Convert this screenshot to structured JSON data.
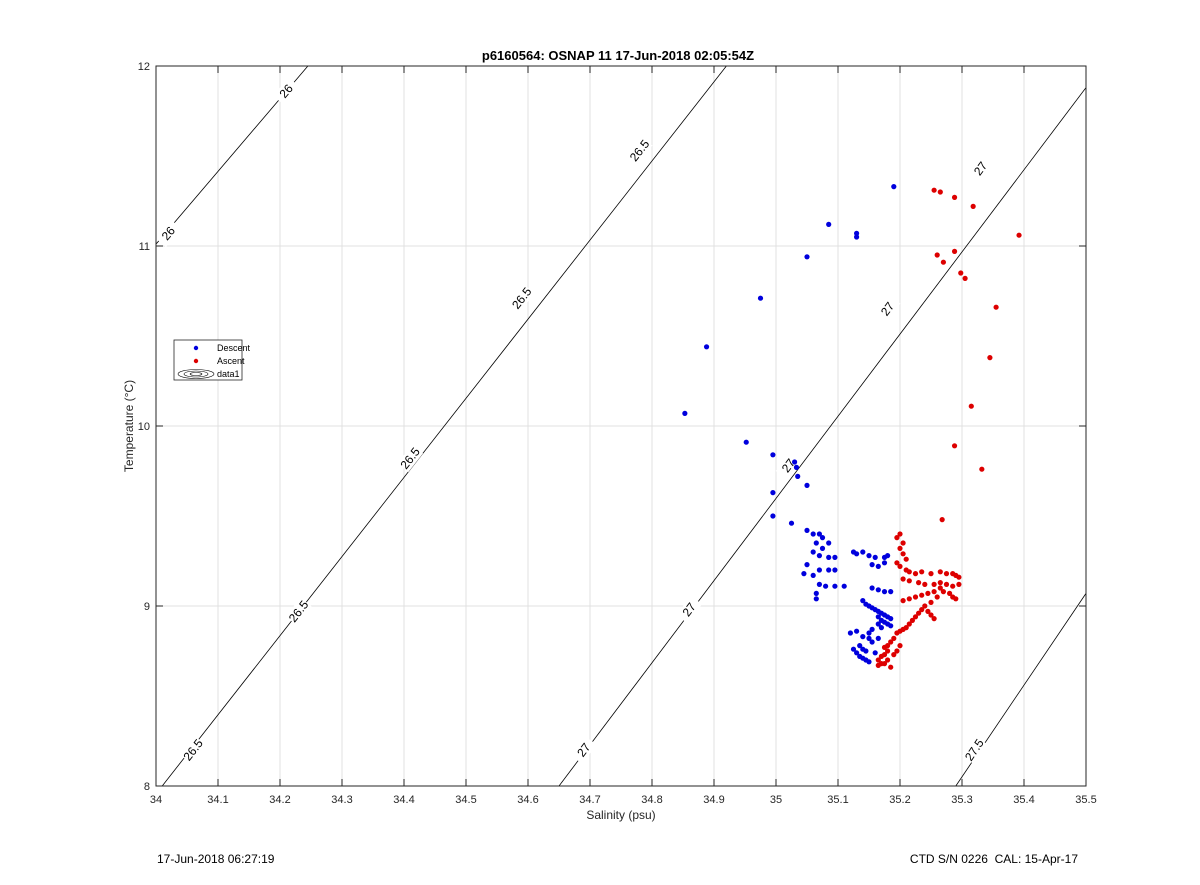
{
  "chart_data": {
    "type": "scatter",
    "title": "p6160564: OSNAP 11 17-Jun-2018 02:05:54Z",
    "xlabel": "Salinity (psu)",
    "ylabel": "Temperature (°C)",
    "xlim": [
      34,
      35.5
    ],
    "ylim": [
      8,
      12
    ],
    "xticks": [
      "34",
      "34.1",
      "34.2",
      "34.3",
      "34.4",
      "34.5",
      "34.6",
      "34.7",
      "34.8",
      "34.9",
      "35",
      "35.1",
      "35.2",
      "35.3",
      "35.4",
      "35.5"
    ],
    "yticks": [
      "8",
      "9",
      "10",
      "11",
      "12"
    ],
    "grid": true,
    "legend_position": "left",
    "legend": [
      "Descent",
      "Ascent",
      "data1"
    ],
    "colors": {
      "descent": "#0000dd",
      "ascent": "#dd0000",
      "contour": "#000000",
      "grid": "#e0e0e0"
    },
    "contours": [
      {
        "level": "26",
        "line": [
          [
            33.99,
            10.97
          ],
          [
            34.245,
            12.0
          ]
        ],
        "labels": [
          [
            34.02,
            11.07
          ],
          [
            34.21,
            11.86
          ]
        ]
      },
      {
        "level": "26.5",
        "line": [
          [
            34.01,
            8.0
          ],
          [
            34.92,
            12.0
          ]
        ],
        "labels": [
          [
            34.06,
            8.2
          ],
          [
            34.23,
            8.97
          ],
          [
            34.41,
            9.82
          ],
          [
            34.59,
            10.71
          ],
          [
            34.78,
            11.53
          ]
        ]
      },
      {
        "level": "27",
        "line": [
          [
            34.65,
            8.0
          ],
          [
            35.5,
            11.88
          ]
        ],
        "labels": [
          [
            34.69,
            8.2
          ],
          [
            34.86,
            8.98
          ],
          [
            35.02,
            9.78
          ],
          [
            35.18,
            10.65
          ],
          [
            35.33,
            11.43
          ]
        ]
      },
      {
        "level": "27.5",
        "line": [
          [
            35.29,
            8.0
          ],
          [
            35.5,
            9.07
          ]
        ],
        "labels": [
          [
            35.32,
            8.2
          ]
        ]
      }
    ],
    "series": [
      {
        "name": "Descent",
        "points": [
          [
            35.19,
            11.33
          ],
          [
            35.085,
            11.12
          ],
          [
            35.13,
            11.07
          ],
          [
            35.13,
            11.05
          ],
          [
            35.05,
            10.94
          ],
          [
            34.975,
            10.71
          ],
          [
            34.888,
            10.44
          ],
          [
            34.853,
            10.07
          ],
          [
            34.952,
            9.91
          ],
          [
            34.995,
            9.84
          ],
          [
            35.03,
            9.8
          ],
          [
            35.033,
            9.77
          ],
          [
            35.035,
            9.72
          ],
          [
            35.05,
            9.67
          ],
          [
            34.995,
            9.63
          ],
          [
            34.995,
            9.5
          ],
          [
            35.025,
            9.46
          ],
          [
            35.05,
            9.42
          ],
          [
            35.06,
            9.4
          ],
          [
            35.07,
            9.4
          ],
          [
            35.075,
            9.38
          ],
          [
            35.085,
            9.35
          ],
          [
            35.065,
            9.35
          ],
          [
            35.075,
            9.32
          ],
          [
            35.06,
            9.3
          ],
          [
            35.07,
            9.28
          ],
          [
            35.085,
            9.27
          ],
          [
            35.095,
            9.27
          ],
          [
            35.125,
            9.3
          ],
          [
            35.13,
            9.29
          ],
          [
            35.14,
            9.3
          ],
          [
            35.15,
            9.28
          ],
          [
            35.16,
            9.27
          ],
          [
            35.175,
            9.27
          ],
          [
            35.18,
            9.28
          ],
          [
            35.05,
            9.23
          ],
          [
            35.045,
            9.18
          ],
          [
            35.06,
            9.17
          ],
          [
            35.07,
            9.2
          ],
          [
            35.085,
            9.2
          ],
          [
            35.095,
            9.2
          ],
          [
            35.155,
            9.23
          ],
          [
            35.165,
            9.22
          ],
          [
            35.175,
            9.24
          ],
          [
            35.07,
            9.12
          ],
          [
            35.08,
            9.11
          ],
          [
            35.095,
            9.11
          ],
          [
            35.11,
            9.11
          ],
          [
            35.065,
            9.07
          ],
          [
            35.065,
            9.04
          ],
          [
            35.155,
            9.1
          ],
          [
            35.165,
            9.09
          ],
          [
            35.175,
            9.08
          ],
          [
            35.185,
            9.08
          ],
          [
            35.14,
            9.03
          ],
          [
            35.145,
            9.01
          ],
          [
            35.15,
            9.0
          ],
          [
            35.155,
            8.99
          ],
          [
            35.16,
            8.98
          ],
          [
            35.165,
            8.97
          ],
          [
            35.17,
            8.96
          ],
          [
            35.175,
            8.95
          ],
          [
            35.18,
            8.94
          ],
          [
            35.185,
            8.93
          ],
          [
            35.165,
            8.94
          ],
          [
            35.17,
            8.92
          ],
          [
            35.175,
            8.91
          ],
          [
            35.18,
            8.9
          ],
          [
            35.185,
            8.89
          ],
          [
            35.165,
            8.9
          ],
          [
            35.17,
            8.88
          ],
          [
            35.155,
            8.87
          ],
          [
            35.15,
            8.85
          ],
          [
            35.13,
            8.86
          ],
          [
            35.12,
            8.85
          ],
          [
            35.14,
            8.83
          ],
          [
            35.15,
            8.82
          ],
          [
            35.155,
            8.8
          ],
          [
            35.165,
            8.82
          ],
          [
            35.135,
            8.78
          ],
          [
            35.14,
            8.76
          ],
          [
            35.145,
            8.75
          ],
          [
            35.13,
            8.74
          ],
          [
            35.135,
            8.72
          ],
          [
            35.14,
            8.71
          ],
          [
            35.145,
            8.7
          ],
          [
            35.15,
            8.69
          ],
          [
            35.125,
            8.76
          ],
          [
            35.16,
            8.74
          ]
        ]
      },
      {
        "name": "Ascent",
        "points": [
          [
            35.255,
            11.31
          ],
          [
            35.265,
            11.3
          ],
          [
            35.288,
            11.27
          ],
          [
            35.318,
            11.22
          ],
          [
            35.392,
            11.06
          ],
          [
            35.26,
            10.95
          ],
          [
            35.27,
            10.91
          ],
          [
            35.288,
            10.97
          ],
          [
            35.298,
            10.85
          ],
          [
            35.305,
            10.82
          ],
          [
            35.355,
            10.66
          ],
          [
            35.345,
            10.38
          ],
          [
            35.315,
            10.11
          ],
          [
            35.288,
            9.89
          ],
          [
            35.332,
            9.76
          ],
          [
            35.268,
            9.48
          ],
          [
            35.2,
            9.4
          ],
          [
            35.195,
            9.38
          ],
          [
            35.205,
            9.35
          ],
          [
            35.2,
            9.32
          ],
          [
            35.205,
            9.29
          ],
          [
            35.21,
            9.26
          ],
          [
            35.195,
            9.24
          ],
          [
            35.2,
            9.22
          ],
          [
            35.21,
            9.2
          ],
          [
            35.215,
            9.19
          ],
          [
            35.225,
            9.18
          ],
          [
            35.235,
            9.19
          ],
          [
            35.25,
            9.18
          ],
          [
            35.265,
            9.19
          ],
          [
            35.275,
            9.18
          ],
          [
            35.285,
            9.18
          ],
          [
            35.29,
            9.17
          ],
          [
            35.295,
            9.16
          ],
          [
            35.205,
            9.15
          ],
          [
            35.215,
            9.14
          ],
          [
            35.23,
            9.13
          ],
          [
            35.24,
            9.12
          ],
          [
            35.255,
            9.12
          ],
          [
            35.265,
            9.13
          ],
          [
            35.275,
            9.12
          ],
          [
            35.285,
            9.11
          ],
          [
            35.295,
            9.12
          ],
          [
            35.265,
            9.1
          ],
          [
            35.255,
            9.08
          ],
          [
            35.245,
            9.07
          ],
          [
            35.235,
            9.06
          ],
          [
            35.225,
            9.05
          ],
          [
            35.215,
            9.04
          ],
          [
            35.205,
            9.03
          ],
          [
            35.27,
            9.08
          ],
          [
            35.28,
            9.07
          ],
          [
            35.285,
            9.05
          ],
          [
            35.29,
            9.04
          ],
          [
            35.26,
            9.05
          ],
          [
            35.25,
            9.02
          ],
          [
            35.24,
            9.0
          ],
          [
            35.235,
            8.98
          ],
          [
            35.23,
            8.96
          ],
          [
            35.225,
            8.94
          ],
          [
            35.22,
            8.92
          ],
          [
            35.215,
            8.9
          ],
          [
            35.21,
            8.88
          ],
          [
            35.205,
            8.87
          ],
          [
            35.2,
            8.86
          ],
          [
            35.195,
            8.85
          ],
          [
            35.245,
            8.97
          ],
          [
            35.25,
            8.95
          ],
          [
            35.255,
            8.93
          ],
          [
            35.19,
            8.82
          ],
          [
            35.185,
            8.8
          ],
          [
            35.18,
            8.78
          ],
          [
            35.175,
            8.77
          ],
          [
            35.18,
            8.75
          ],
          [
            35.175,
            8.73
          ],
          [
            35.17,
            8.72
          ],
          [
            35.165,
            8.7
          ],
          [
            35.17,
            8.68
          ],
          [
            35.165,
            8.67
          ],
          [
            35.175,
            8.68
          ],
          [
            35.18,
            8.7
          ],
          [
            35.19,
            8.73
          ],
          [
            35.195,
            8.75
          ],
          [
            35.2,
            8.78
          ],
          [
            35.185,
            8.66
          ]
        ]
      }
    ]
  },
  "footer": {
    "timestamp": "17-Jun-2018 06:27:19",
    "instrument": "CTD S/N 0226  CAL: 15-Apr-17"
  }
}
